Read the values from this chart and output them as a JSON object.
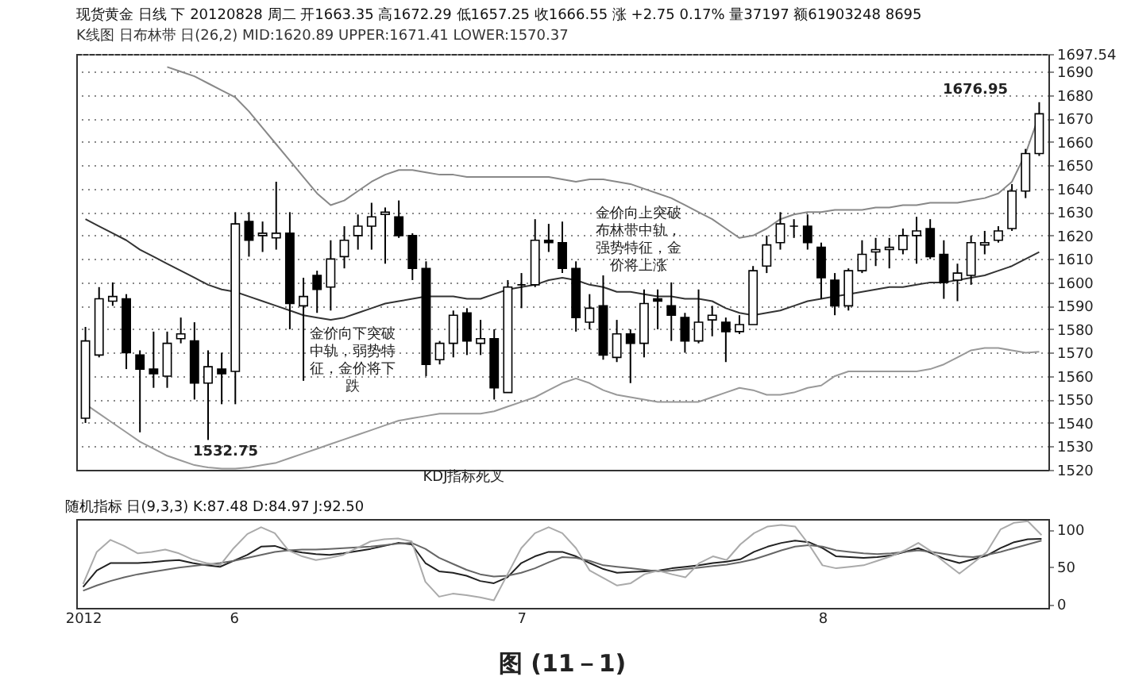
{
  "chart_data": [
    {
      "type": "candlestick",
      "title": "现货黄金 日线 下 20120828 周二 开1663.35 高1672.29 低1657.25 收1666.55 涨 +2.75 0.17% 量37197 额61903248 8695",
      "subtitle": "K线图 日布林带 日(26,2) MID:1620.89 UPPER:1671.41 LOWER:1570.37",
      "categories": [
        "2012",
        null,
        null,
        null,
        null,
        null,
        null,
        null,
        null,
        null,
        null,
        "6",
        null,
        null,
        null,
        null,
        null,
        null,
        null,
        null,
        null,
        null,
        null,
        null,
        null,
        null,
        null,
        null,
        null,
        null,
        null,
        null,
        "7",
        null,
        null,
        null,
        null,
        null,
        null,
        null,
        null,
        null,
        null,
        null,
        null,
        null,
        null,
        null,
        null,
        null,
        null,
        null,
        null,
        null,
        "8",
        null,
        null,
        null,
        null,
        null,
        null,
        null,
        null,
        null,
        null,
        null,
        null,
        null,
        null,
        null,
        null
      ],
      "ohlc": [
        [
          1542,
          1581,
          1540,
          1575
        ],
        [
          1569,
          1598,
          1568,
          1593
        ],
        [
          1592,
          1600,
          1590,
          1594
        ],
        [
          1593,
          1595,
          1563,
          1570
        ],
        [
          1569,
          1571,
          1536,
          1563
        ],
        [
          1563,
          1579,
          1555,
          1561
        ],
        [
          1560,
          1579,
          1555,
          1574
        ],
        [
          1576,
          1585,
          1574,
          1578
        ],
        [
          1575,
          1583,
          1550,
          1557
        ],
        [
          1557,
          1571,
          1532.75,
          1564
        ],
        [
          1563,
          1570,
          1548,
          1561
        ],
        [
          1562,
          1630,
          1548,
          1625
        ],
        [
          1626,
          1630,
          1611,
          1618
        ],
        [
          1620,
          1626,
          1613,
          1621
        ],
        [
          1619,
          1643,
          1614,
          1621
        ],
        [
          1621,
          1630,
          1580,
          1591
        ],
        [
          1590,
          1602,
          1558,
          1594
        ],
        [
          1603,
          1605,
          1587,
          1597
        ],
        [
          1598,
          1618,
          1588,
          1610
        ],
        [
          1611,
          1624,
          1606,
          1618
        ],
        [
          1620,
          1629,
          1614,
          1624
        ],
        [
          1624,
          1634,
          1614,
          1628
        ],
        [
          1629,
          1632,
          1608,
          1630
        ],
        [
          1628,
          1635,
          1619,
          1620
        ],
        [
          1620,
          1621,
          1601,
          1606
        ],
        [
          1606,
          1609,
          1560,
          1565
        ],
        [
          1567,
          1575,
          1565,
          1574
        ],
        [
          1574,
          1588,
          1568,
          1586
        ],
        [
          1587,
          1589,
          1569,
          1575
        ],
        [
          1574,
          1584,
          1569,
          1576
        ],
        [
          1576,
          1580,
          1550,
          1555
        ],
        [
          1553,
          1601,
          1553,
          1598
        ],
        [
          1599,
          1604,
          1589,
          1599
        ],
        [
          1599,
          1627,
          1598,
          1618
        ],
        [
          1618,
          1625,
          1613,
          1617
        ],
        [
          1617,
          1626,
          1604,
          1606
        ],
        [
          1606,
          1609,
          1579,
          1585
        ],
        [
          1583,
          1595,
          1580,
          1589
        ],
        [
          1590,
          1603,
          1567,
          1569
        ],
        [
          1568,
          1584,
          1566,
          1578
        ],
        [
          1578,
          1580,
          1557,
          1574
        ],
        [
          1574,
          1597,
          1568,
          1591
        ],
        [
          1593,
          1597,
          1580,
          1592
        ],
        [
          1590,
          1600,
          1575,
          1586
        ],
        [
          1585,
          1587,
          1570,
          1575
        ],
        [
          1575,
          1597,
          1574,
          1583
        ],
        [
          1584,
          1590,
          1577,
          1586
        ],
        [
          1583,
          1585,
          1566,
          1579
        ],
        [
          1579,
          1586,
          1578,
          1582
        ],
        [
          1582,
          1607,
          1582,
          1605
        ],
        [
          1607,
          1620,
          1604,
          1616
        ],
        [
          1617,
          1630,
          1614,
          1625
        ],
        [
          1624,
          1627,
          1619,
          1624
        ],
        [
          1624,
          1629,
          1614,
          1617
        ],
        [
          1615,
          1617,
          1593,
          1602
        ],
        [
          1601,
          1604,
          1586,
          1590
        ],
        [
          1590,
          1606,
          1588,
          1605
        ],
        [
          1605,
          1618,
          1604,
          1612
        ],
        [
          1613,
          1619,
          1607,
          1614
        ],
        [
          1614,
          1619,
          1606,
          1615
        ],
        [
          1614,
          1623,
          1612,
          1620
        ],
        [
          1620,
          1628,
          1608,
          1622
        ],
        [
          1623,
          1627,
          1610,
          1611
        ],
        [
          1612,
          1618,
          1593,
          1600
        ],
        [
          1601,
          1608,
          1592,
          1604
        ],
        [
          1603,
          1620,
          1599,
          1617
        ],
        [
          1616,
          1622,
          1612,
          1617
        ],
        [
          1618,
          1624,
          1617,
          1622
        ],
        [
          1623,
          1642,
          1622,
          1639
        ],
        [
          1639,
          1657,
          1636,
          1655
        ],
        [
          1655,
          1676.95,
          1654,
          1672
        ]
      ],
      "series": [
        {
          "type": "line",
          "color": "#888888",
          "values": [
            null,
            null,
            null,
            null,
            null,
            null,
            1692,
            1690,
            1688,
            1685,
            1682,
            1679,
            1673,
            1666,
            1659,
            1652,
            1645,
            1638,
            1633,
            1635,
            1639,
            1643,
            1646,
            1648,
            1648,
            1647,
            1646,
            1646,
            1645,
            1645,
            1645,
            1645,
            1645,
            1645,
            1645,
            1644,
            1643,
            1644,
            1644,
            1643,
            1642,
            1640,
            1638,
            1636,
            1633,
            1630,
            1627,
            1623,
            1619,
            1620,
            1623,
            1627,
            1629,
            1630,
            1630,
            1631,
            1631,
            1631,
            1632,
            1632,
            1633,
            1633,
            1634,
            1634,
            1634,
            1635,
            1636,
            1638,
            1643,
            1655,
            1671.41
          ]
        },
        {
          "type": "line",
          "color": "#333333",
          "values": [
            1627,
            1624,
            1621,
            1618,
            1614,
            1611,
            1608,
            1605,
            1602,
            1599,
            1597,
            1596,
            1594,
            1592,
            1590,
            1588,
            1586,
            1585,
            1584,
            1585,
            1587,
            1589,
            1591,
            1592,
            1593,
            1594,
            1594,
            1594,
            1593,
            1593,
            1595,
            1597,
            1598,
            1599,
            1601,
            1602,
            1601,
            1599,
            1598,
            1596,
            1596,
            1595,
            1594,
            1594,
            1593,
            1593,
            1592,
            1589,
            1587,
            1586,
            1587,
            1588,
            1590,
            1592,
            1593,
            1594,
            1595,
            1596,
            1597,
            1598,
            1598,
            1599,
            1600,
            1600,
            1601,
            1602,
            1603,
            1605,
            1607,
            1610,
            1613
          ]
        },
        {
          "type": "line",
          "color": "#999999",
          "values": [
            1548,
            1544,
            1540,
            1536,
            1532,
            1529,
            1526,
            1524,
            1522,
            1521,
            1520.5,
            1520.5,
            1521,
            1522,
            1523,
            1525,
            1527,
            1529,
            1531,
            1533,
            1535,
            1537,
            1539,
            1541,
            1542,
            1543,
            1544,
            1544,
            1544,
            1544,
            1545,
            1547,
            1549,
            1551,
            1554,
            1557,
            1559,
            1557,
            1554,
            1552,
            1551,
            1550,
            1549,
            1549,
            1549,
            1549,
            1551,
            1553,
            1555,
            1554,
            1552,
            1552,
            1553,
            1555,
            1556,
            1560,
            1562,
            1562,
            1562,
            1562,
            1562,
            1562,
            1563,
            1565,
            1568,
            1571,
            1572,
            1572,
            1571,
            1570,
            1570.37
          ]
        }
      ],
      "ylim": [
        1520,
        1697.54
      ],
      "yticks": [
        1520,
        1530,
        1540,
        1550,
        1560,
        1570,
        1580,
        1590,
        1600,
        1610,
        1620,
        1630,
        1640,
        1650,
        1660,
        1670,
        1680,
        1690,
        1697.54
      ],
      "grid": "y",
      "tick_labels": "y",
      "annotations": [
        "1532.75",
        "1676.95",
        "金价向下突破中轨，弱势特征，金价将下跌",
        "金价向上突破布林带中轨，强势特征，金价将上涨",
        "KDJ指标死叉"
      ]
    },
    {
      "type": "line",
      "title": "随机指标 日(9,3,3) K:87.48 D:84.97 J:92.50",
      "categories": [
        "2012",
        null,
        null,
        null,
        null,
        null,
        null,
        null,
        null,
        null,
        null,
        "6",
        null,
        null,
        null,
        null,
        null,
        null,
        null,
        null,
        null,
        null,
        null,
        null,
        null,
        null,
        null,
        null,
        null,
        null,
        null,
        null,
        "7",
        null,
        null,
        null,
        null,
        null,
        null,
        null,
        null,
        null,
        null,
        null,
        null,
        null,
        null,
        null,
        null,
        null,
        null,
        null,
        null,
        null,
        "8",
        null,
        null,
        null,
        null,
        null,
        null,
        null,
        null,
        null,
        null,
        null,
        null,
        null,
        null,
        null,
        null
      ],
      "series": [
        {
          "color": "#222222",
          "values": [
            23,
            45,
            55,
            55,
            55,
            56,
            58,
            59,
            55,
            52,
            50,
            58,
            66,
            77,
            78,
            72,
            69,
            67,
            66,
            68,
            71,
            74,
            78,
            82,
            80,
            55,
            44,
            42,
            38,
            31,
            28,
            36,
            55,
            64,
            70,
            70,
            64,
            55,
            47,
            42,
            43,
            44,
            45,
            48,
            50,
            52,
            55,
            57,
            60,
            70,
            77,
            82,
            85,
            83,
            75,
            64,
            63,
            62,
            63,
            65,
            70,
            75,
            68,
            60,
            55,
            60,
            65,
            75,
            83,
            87,
            87.48
          ]
        },
        {
          "color": "#666666",
          "values": [
            18,
            25,
            31,
            36,
            40,
            43,
            46,
            49,
            51,
            53,
            55,
            58,
            62,
            66,
            70,
            72,
            73,
            73,
            74,
            75,
            76,
            77,
            79,
            81,
            82,
            74,
            62,
            54,
            46,
            40,
            37,
            38,
            42,
            48,
            56,
            63,
            62,
            58,
            52,
            50,
            48,
            46,
            44,
            45,
            47,
            49,
            51,
            53,
            56,
            60,
            66,
            72,
            77,
            79,
            77,
            72,
            70,
            68,
            67,
            68,
            70,
            72,
            70,
            67,
            64,
            63,
            66,
            70,
            75,
            80,
            84.97
          ]
        },
        {
          "color": "#aaaaaa",
          "values": [
            27,
            70,
            86,
            78,
            68,
            70,
            73,
            68,
            60,
            55,
            52,
            75,
            94,
            103,
            95,
            72,
            64,
            59,
            62,
            66,
            75,
            84,
            87,
            88,
            84,
            30,
            10,
            14,
            12,
            9,
            5,
            40,
            75,
            95,
            103,
            95,
            75,
            45,
            35,
            25,
            28,
            40,
            45,
            40,
            36,
            55,
            64,
            59,
            80,
            95,
            104,
            106,
            104,
            80,
            52,
            48,
            50,
            52,
            58,
            64,
            72,
            82,
            70,
            55,
            41,
            55,
            70,
            100,
            109,
            111,
            92.5
          ]
        }
      ],
      "ylim": [
        -5,
        114
      ],
      "yticks": [
        0,
        50,
        100
      ],
      "annotations": [
        "图 (11－1)"
      ]
    }
  ]
}
